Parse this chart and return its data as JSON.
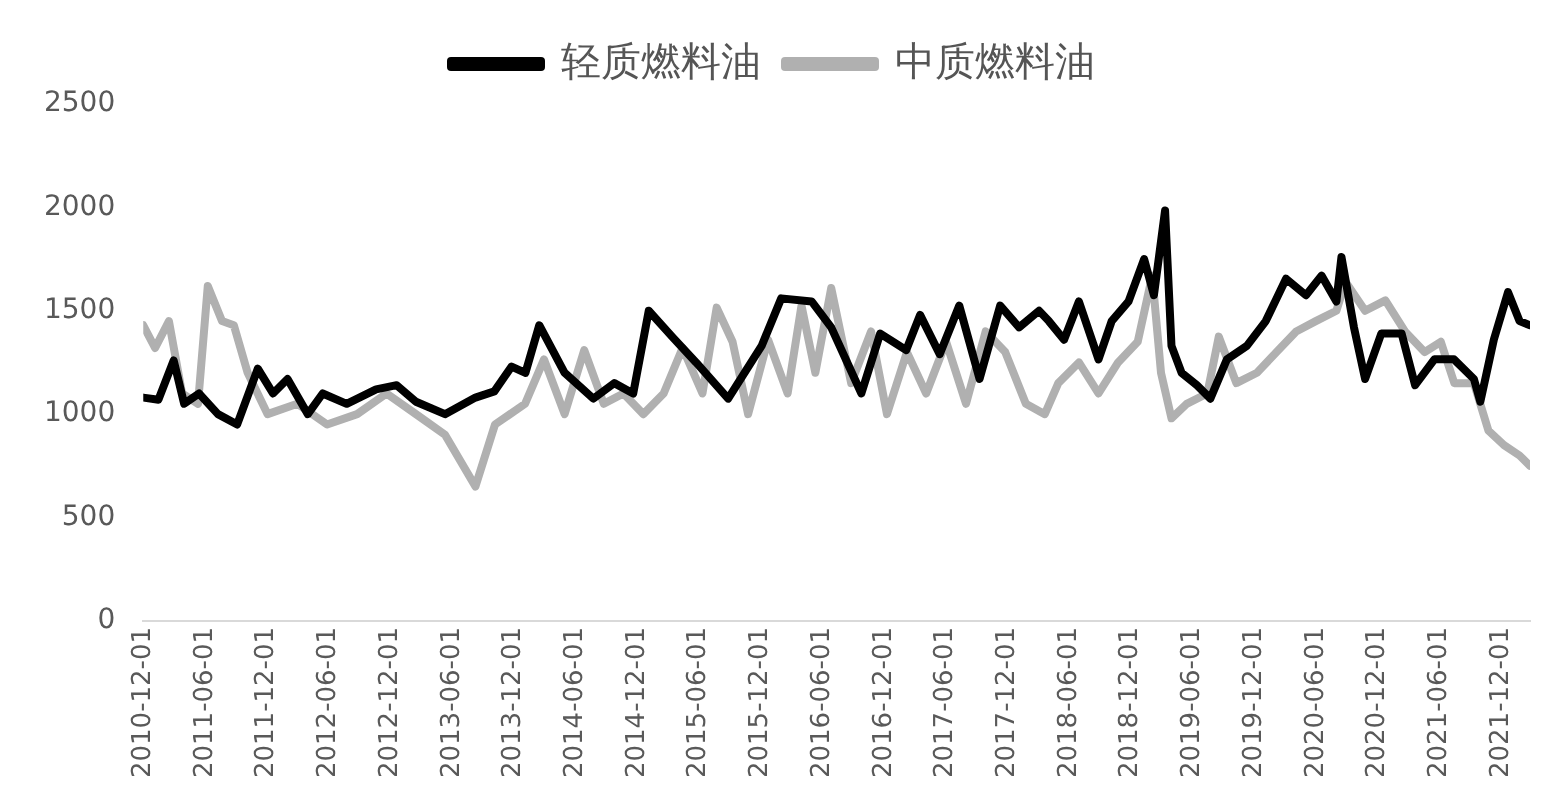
{
  "chart_data": {
    "type": "line",
    "legend": "top",
    "marker": "none",
    "line_style": "solid",
    "grid": false,
    "ylim": [
      0,
      2500
    ],
    "yticks": [
      0,
      500,
      1000,
      1500,
      2000,
      2500
    ],
    "xlim": [
      "2010-12-01",
      "2022-02-25"
    ],
    "xticks": [
      "2010-12-01",
      "2011-06-01",
      "2011-12-01",
      "2012-06-01",
      "2012-12-01",
      "2013-06-01",
      "2013-12-01",
      "2014-06-01",
      "2014-12-01",
      "2015-06-01",
      "2015-12-01",
      "2016-06-01",
      "2016-12-01",
      "2017-06-01",
      "2017-12-01",
      "2018-06-01",
      "2018-12-01",
      "2019-06-01",
      "2019-12-01",
      "2020-06-01",
      "2020-12-01",
      "2021-06-01",
      "2021-12-01"
    ],
    "series": [
      {
        "name": "轻质燃料油",
        "color": "#000000",
        "x": [
          "2010-12-01",
          "2011-01-15",
          "2011-03-01",
          "2011-04-01",
          "2011-05-15",
          "2011-07-10",
          "2011-09-05",
          "2011-11-05",
          "2011-12-20",
          "2012-02-01",
          "2012-04-01",
          "2012-05-15",
          "2012-07-25",
          "2012-10-20",
          "2012-12-20",
          "2013-02-15",
          "2013-05-12",
          "2013-08-10",
          "2013-10-05",
          "2013-11-25",
          "2014-01-05",
          "2014-02-15",
          "2014-05-01",
          "2014-07-25",
          "2014-09-25",
          "2014-11-20",
          "2015-01-05",
          "2015-03-15",
          "2015-05-25",
          "2015-08-28",
          "2015-12-05",
          "2016-02-01",
          "2016-05-01",
          "2016-06-28",
          "2016-09-25",
          "2016-11-20",
          "2017-02-05",
          "2017-03-18",
          "2017-05-15",
          "2017-07-12",
          "2017-09-10",
          "2017-11-10",
          "2018-01-05",
          "2018-03-05",
          "2018-04-03",
          "2018-05-18",
          "2018-07-01",
          "2018-08-28",
          "2018-10-06",
          "2018-11-25",
          "2019-01-10",
          "2019-02-08",
          "2019-03-13",
          "2019-04-01",
          "2019-05-01",
          "2019-06-15",
          "2019-07-25",
          "2019-09-12",
          "2019-11-10",
          "2020-01-05",
          "2020-03-05",
          "2020-05-03",
          "2020-06-18",
          "2020-08-01",
          "2020-08-16",
          "2020-09-22",
          "2020-10-25",
          "2020-12-12",
          "2021-02-10",
          "2021-03-22",
          "2021-05-18",
          "2021-07-15",
          "2021-09-12",
          "2021-10-01",
          "2021-11-10",
          "2021-12-22",
          "2022-01-25",
          "2022-02-25"
        ],
        "values": [
          1080,
          1070,
          1260,
          1050,
          1100,
          1000,
          950,
          1220,
          1100,
          1170,
          1000,
          1100,
          1050,
          1120,
          1140,
          1060,
          1000,
          1080,
          1110,
          1230,
          1200,
          1430,
          1200,
          1075,
          1150,
          1100,
          1500,
          1375,
          1250,
          1075,
          1330,
          1560,
          1545,
          1420,
          1100,
          1390,
          1310,
          1480,
          1290,
          1525,
          1170,
          1525,
          1420,
          1500,
          1450,
          1360,
          1545,
          1265,
          1450,
          1545,
          1750,
          1575,
          1985,
          1330,
          1200,
          1140,
          1075,
          1265,
          1330,
          1450,
          1655,
          1575,
          1670,
          1545,
          1760,
          1420,
          1170,
          1390,
          1390,
          1140,
          1265,
          1265,
          1170,
          1060,
          1360,
          1590,
          1450,
          1430
        ]
      },
      {
        "name": "中质燃料油",
        "color": "#b0b0b0",
        "x": [
          "2010-12-01",
          "2011-01-05",
          "2011-02-15",
          "2011-03-26",
          "2011-05-12",
          "2011-06-10",
          "2011-07-22",
          "2011-08-26",
          "2011-10-06",
          "2011-12-04",
          "2012-03-01",
          "2012-05-28",
          "2012-08-25",
          "2012-11-20",
          "2013-02-15",
          "2013-05-12",
          "2013-08-10",
          "2013-10-07",
          "2014-01-04",
          "2014-03-01",
          "2014-05-01",
          "2014-06-28",
          "2014-08-25",
          "2014-10-22",
          "2014-12-20",
          "2015-02-18",
          "2015-04-15",
          "2015-06-13",
          "2015-07-25",
          "2015-09-10",
          "2015-10-26",
          "2015-12-24",
          "2016-02-20",
          "2016-04-01",
          "2016-05-12",
          "2016-06-28",
          "2016-08-26",
          "2016-10-24",
          "2016-12-10",
          "2017-02-07",
          "2017-04-05",
          "2017-06-03",
          "2017-08-01",
          "2017-09-28",
          "2017-11-25",
          "2018-01-25",
          "2018-03-22",
          "2018-05-01",
          "2018-07-01",
          "2018-08-28",
          "2018-10-25",
          "2018-12-22",
          "2019-02-03",
          "2019-03-01",
          "2019-04-01",
          "2019-05-16",
          "2019-07-16",
          "2019-08-19",
          "2019-10-10",
          "2019-12-10",
          "2020-02-06",
          "2020-04-04",
          "2020-06-01",
          "2020-08-01",
          "2020-08-28",
          "2020-10-25",
          "2020-12-24",
          "2021-02-20",
          "2021-04-19",
          "2021-06-06",
          "2021-07-16",
          "2021-09-12",
          "2021-10-25",
          "2021-12-10",
          "2022-01-25",
          "2022-02-25"
        ],
        "values": [
          1430,
          1320,
          1450,
          1100,
          1050,
          1620,
          1450,
          1430,
          1200,
          1000,
          1050,
          950,
          1000,
          1100,
          1000,
          900,
          650,
          950,
          1050,
          1265,
          1000,
          1310,
          1050,
          1100,
          1000,
          1100,
          1320,
          1100,
          1515,
          1350,
          1000,
          1360,
          1100,
          1525,
          1200,
          1610,
          1150,
          1400,
          1000,
          1300,
          1100,
          1350,
          1050,
          1400,
          1300,
          1050,
          1000,
          1150,
          1250,
          1100,
          1250,
          1350,
          1670,
          1200,
          980,
          1050,
          1100,
          1375,
          1150,
          1200,
          1300,
          1400,
          1450,
          1500,
          1640,
          1500,
          1550,
          1400,
          1300,
          1350,
          1150,
          1150,
          920,
          850,
          800,
          750
        ]
      }
    ]
  }
}
